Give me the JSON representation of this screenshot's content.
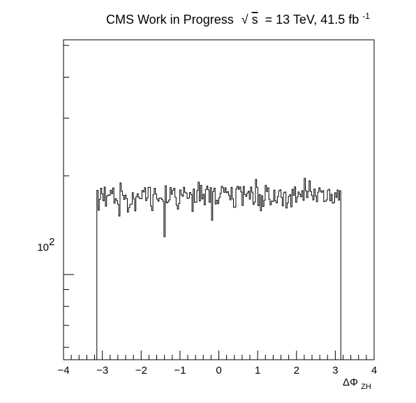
{
  "chart_data": {
    "type": "histogram",
    "title": {
      "prefix": "CMS Work in Progress",
      "sqrt_symbol": "√",
      "sqrt_arg": "s",
      "mid": "= 13 TeV, 41.5 fb",
      "sup": "-1"
    },
    "x_axis": {
      "label_base": "ΔΦ",
      "label_sub": "ZH",
      "range": [
        -4,
        4
      ],
      "major_ticks": [
        -4,
        -3,
        -2,
        -1,
        0,
        1,
        2,
        3,
        4
      ],
      "tick_labels": [
        "−4",
        "−3",
        "−2",
        "−1",
        "0",
        "1",
        "2",
        "3",
        "4"
      ],
      "minor_per_major": 5
    },
    "y_axis": {
      "scale": "log",
      "range": [
        55,
        520
      ],
      "major_tick": 100,
      "tick_label_base": "10",
      "tick_label_exp": "2"
    },
    "histogram": {
      "x_start": -3.14159,
      "x_end": 3.14159,
      "n_bins": 200,
      "mean_count": 175,
      "fluctuation": 10,
      "random_seed": 41
    },
    "grid": false,
    "legend": "none"
  }
}
